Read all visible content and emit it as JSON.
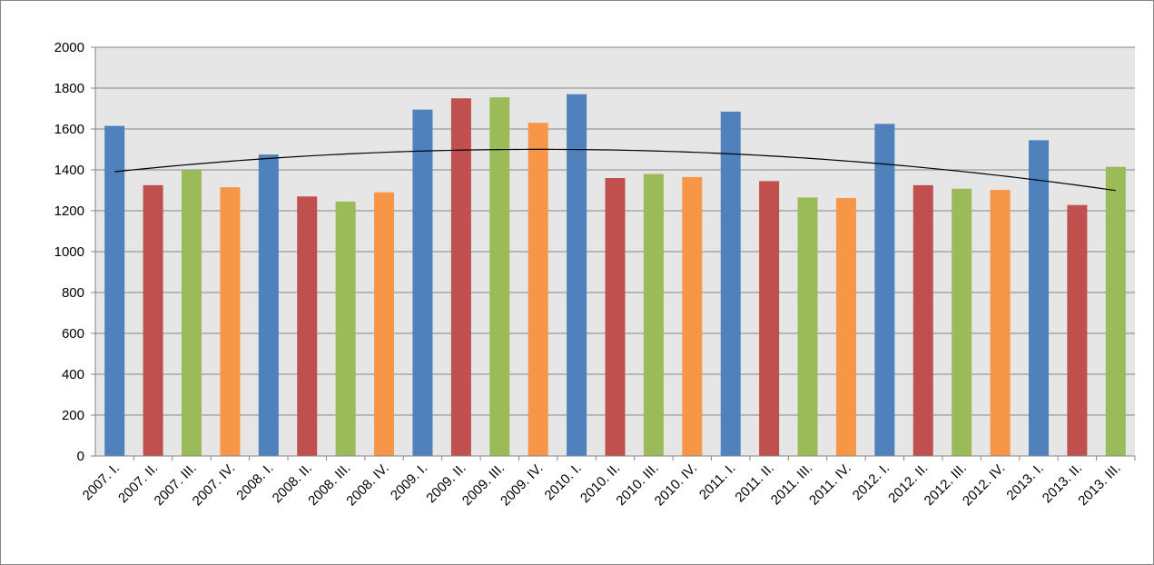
{
  "chart_data": {
    "type": "bar",
    "title": "",
    "xlabel": "",
    "ylabel": "",
    "ylim": [
      0,
      2000
    ],
    "y_ticks": [
      "0",
      "200",
      "400",
      "600",
      "800",
      "1000",
      "1200",
      "1400",
      "1600",
      "1800",
      "2000"
    ],
    "grid": true,
    "legend": "none",
    "categories": [
      "2007. I.",
      "2007. II.",
      "2007. III.",
      "2007. IV.",
      "2008. I.",
      "2008. II.",
      "2008. III.",
      "2008. IV.",
      "2009. I.",
      "2009. II.",
      "2009. III.",
      "2009. IV.",
      "2010. I.",
      "2010. II.",
      "2010. III.",
      "2010. IV.",
      "2011. I.",
      "2011. II.",
      "2011. III.",
      "2011. IV.",
      "2012. I.",
      "2012. II.",
      "2012. III.",
      "2012. IV.",
      "2013. I.",
      "2013. II.",
      "2013. III."
    ],
    "values": [
      1615,
      1325,
      1400,
      1315,
      1475,
      1270,
      1245,
      1290,
      1695,
      1750,
      1755,
      1630,
      1770,
      1360,
      1380,
      1365,
      1685,
      1345,
      1265,
      1262,
      1625,
      1325,
      1308,
      1302,
      1545,
      1228,
      1415
    ],
    "quarter_colors": [
      "#4F81BD",
      "#C0504D",
      "#9BBB59",
      "#F79646"
    ],
    "trendline": {
      "type": "polynomial",
      "order": 2,
      "color": "#000000"
    },
    "plot_background": "#E6E6E6",
    "grid_color": "#868686"
  }
}
